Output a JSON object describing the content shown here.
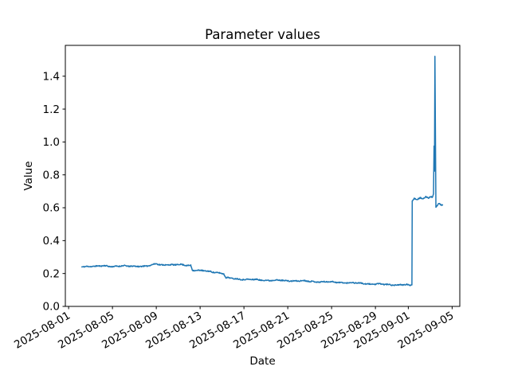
{
  "figure": {
    "title": "Parameter values",
    "xlabel": "Date",
    "ylabel": "Value",
    "background_color": "#ffffff",
    "axes_color": "#000000"
  },
  "chart_data": {
    "type": "line",
    "title": "Parameter values",
    "xlabel": "Date",
    "ylabel": "Value",
    "grid": false,
    "legend": null,
    "x_axis": {
      "kind": "date",
      "epoch_day0": "2025-08-01",
      "tick_labels": [
        "2025-08-01",
        "2025-08-05",
        "2025-08-09",
        "2025-08-13",
        "2025-08-17",
        "2025-08-21",
        "2025-08-25",
        "2025-08-29",
        "2025-09-01",
        "2025-09-05"
      ],
      "tick_days": [
        0,
        4,
        8,
        12,
        16,
        20,
        24,
        28,
        31,
        35
      ],
      "xlim_days": [
        -0.3,
        35.7
      ],
      "tick_label_rotation_deg": 30
    },
    "y_axis": {
      "tick_values": [
        0.0,
        0.2,
        0.4,
        0.6,
        0.8,
        1.0,
        1.2,
        1.4
      ],
      "ylim": [
        0,
        1.5875
      ],
      "tick_decimals": 1
    },
    "series": [
      {
        "name": "Parameter values",
        "color": "#1f77b4",
        "line_width": 1.5,
        "data_start_day": 1.2,
        "data_end_day": 34.13,
        "anchor_points_day_value": [
          [
            1.2,
            0.242
          ],
          [
            2.0,
            0.245
          ],
          [
            2.5,
            0.243
          ],
          [
            3.2,
            0.246
          ],
          [
            4.0,
            0.244
          ],
          [
            4.8,
            0.246
          ],
          [
            5.5,
            0.243
          ],
          [
            6.3,
            0.246
          ],
          [
            7.0,
            0.244
          ],
          [
            7.6,
            0.25
          ],
          [
            8.0,
            0.26
          ],
          [
            8.4,
            0.253
          ],
          [
            9.0,
            0.255
          ],
          [
            9.6,
            0.251
          ],
          [
            10.2,
            0.254
          ],
          [
            10.8,
            0.251
          ],
          [
            11.15,
            0.25
          ],
          [
            11.3,
            0.221
          ],
          [
            11.8,
            0.218
          ],
          [
            12.4,
            0.215
          ],
          [
            13.0,
            0.212
          ],
          [
            13.6,
            0.206
          ],
          [
            14.15,
            0.198
          ],
          [
            14.35,
            0.173
          ],
          [
            15.0,
            0.17
          ],
          [
            15.8,
            0.166
          ],
          [
            16.5,
            0.163
          ],
          [
            17.5,
            0.161
          ],
          [
            18.5,
            0.159
          ],
          [
            19.5,
            0.157
          ],
          [
            20.5,
            0.156
          ],
          [
            21.5,
            0.154
          ],
          [
            22.5,
            0.151
          ],
          [
            23.5,
            0.149
          ],
          [
            24.5,
            0.147
          ],
          [
            25.5,
            0.144
          ],
          [
            26.5,
            0.141
          ],
          [
            27.5,
            0.137
          ],
          [
            28.5,
            0.134
          ],
          [
            29.5,
            0.132
          ],
          [
            30.3,
            0.131
          ],
          [
            30.9,
            0.13
          ],
          [
            31.1,
            0.126
          ],
          [
            31.25,
            0.131
          ],
          [
            31.33,
            0.132
          ],
          [
            31.36,
            0.645
          ],
          [
            31.55,
            0.658
          ],
          [
            31.8,
            0.65
          ],
          [
            32.1,
            0.664
          ],
          [
            32.35,
            0.654
          ],
          [
            32.6,
            0.666
          ],
          [
            32.85,
            0.658
          ],
          [
            33.05,
            0.668
          ],
          [
            33.2,
            0.662
          ],
          [
            33.3,
            0.68
          ],
          [
            33.35,
            0.97
          ],
          [
            33.39,
            0.82
          ],
          [
            33.43,
            1.52
          ],
          [
            33.52,
            0.6
          ],
          [
            33.65,
            0.612
          ],
          [
            33.8,
            0.627
          ],
          [
            34.0,
            0.62
          ],
          [
            34.13,
            0.618
          ]
        ],
        "noise": {
          "seed": 11,
          "jitter_amplitude": 0.0032,
          "wobbles": [
            [
              0.002,
              2.7,
              0.0
            ],
            [
              0.0015,
              7.3,
              2.0
            ]
          ],
          "sample_step_days": 0.04
        }
      }
    ]
  }
}
